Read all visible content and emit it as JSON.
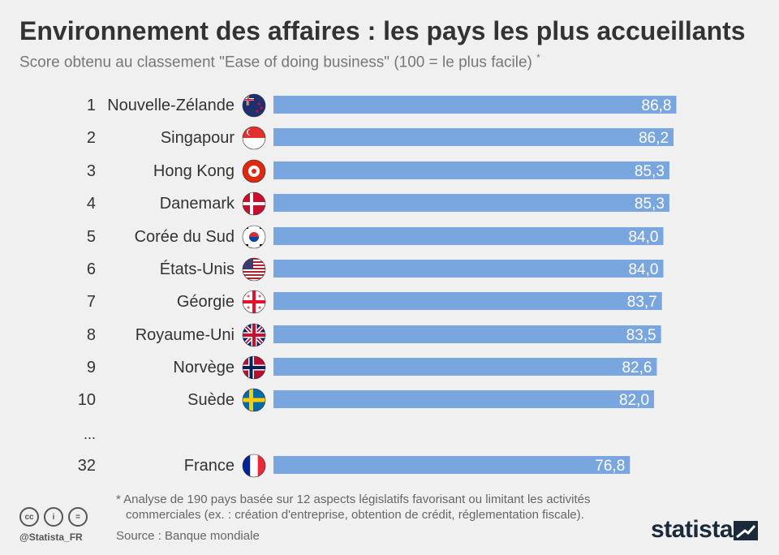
{
  "header": {
    "title": "Environnement des affaires : les pays les plus accueillants",
    "subtitle": "Score obtenu au classement \"Ease of doing business\" (100 = le plus facile)",
    "subtitle_mark": "*"
  },
  "chart_data": {
    "type": "bar",
    "orientation": "horizontal",
    "title": "Environnement des affaires : les pays les plus accueillants",
    "subtitle": "Score obtenu au classement \"Ease of doing business\" (100 = le plus facile) *",
    "ranks": [
      "1",
      "2",
      "3",
      "4",
      "5",
      "6",
      "7",
      "8",
      "9",
      "10",
      "32"
    ],
    "categories": [
      "Nouvelle-Zélande",
      "Singapour",
      "Hong Kong",
      "Danemark",
      "Corée du Sud",
      "États-Unis",
      "Géorgie",
      "Royaume-Uni",
      "Norvège",
      "Suède",
      "France"
    ],
    "values": [
      86.8,
      86.2,
      85.3,
      85.3,
      84.0,
      84.0,
      83.7,
      83.5,
      82.6,
      82.0,
      76.8
    ],
    "value_labels": [
      "86,8",
      "86,2",
      "85,3",
      "85,3",
      "84,0",
      "84,0",
      "83,7",
      "83,5",
      "82,6",
      "82,0",
      "76,8"
    ],
    "flags": [
      "new-zealand-flag",
      "singapore-flag",
      "hong-kong-flag",
      "denmark-flag",
      "south-korea-flag",
      "usa-flag",
      "georgia-flag",
      "uk-flag",
      "norway-flag",
      "sweden-flag",
      "france-flag"
    ],
    "gap_marker": "...",
    "xlim": [
      0,
      100
    ],
    "bar_color": "#7aa6e0",
    "grid": false,
    "legend": "none"
  },
  "footer": {
    "footnote_line1": "* Analyse de 190 pays basée sur 12 aspects législatifs favorisant ou limitant les activités",
    "footnote_line2": "commerciales (ex. : création d'entreprise, obtention de crédit, réglementation fiscale).",
    "source": "Source : Banque mondiale",
    "handle": "@Statista_FR",
    "brand": "statista",
    "cc_icons": [
      "cc-icon",
      "by-icon",
      "nd-icon"
    ]
  }
}
